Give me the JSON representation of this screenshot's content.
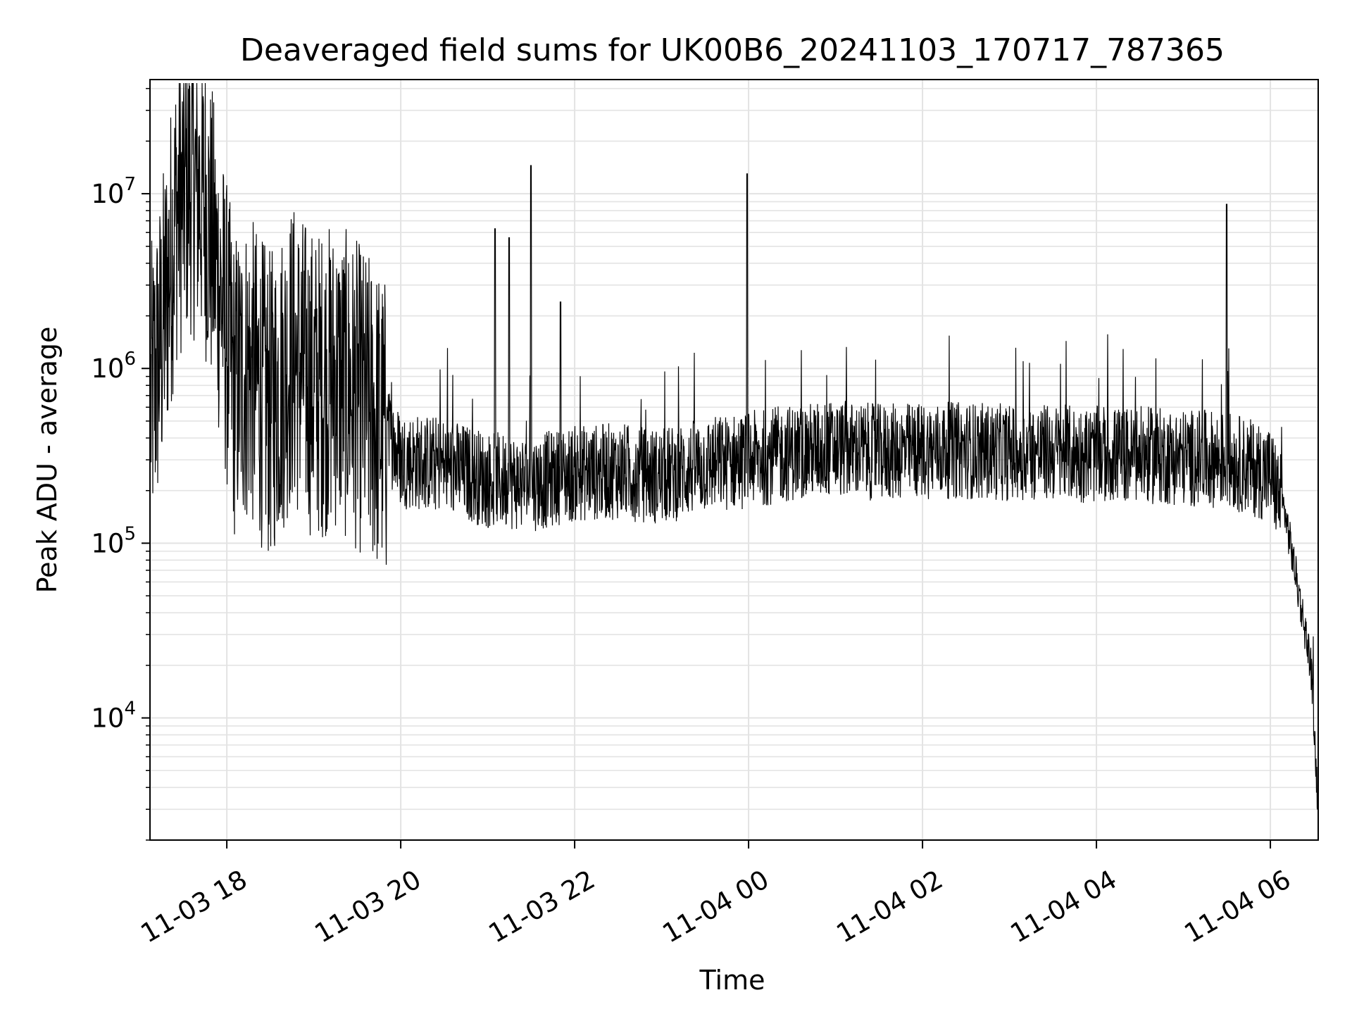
{
  "chart_data": {
    "type": "line",
    "title": "Deaveraged field sums for UK00B6_20241103_170717_787365",
    "xlabel": "Time",
    "ylabel": "Peak ADU - average",
    "y_scale": "log",
    "ylim": [
      2000,
      45000000
    ],
    "xlim": [
      "2024-11-03 17:07",
      "2024-11-04 06:33"
    ],
    "x_ticks": [
      "11-03 18",
      "11-03 20",
      "11-03 22",
      "11-04 00",
      "11-04 02",
      "11-04 04",
      "11-04 06"
    ],
    "x_tick_times": [
      "2024-11-03 18:00",
      "2024-11-03 20:00",
      "2024-11-03 22:00",
      "2024-11-04 00:00",
      "2024-11-04 02:00",
      "2024-11-04 04:00",
      "2024-11-04 06:00"
    ],
    "y_ticks": [
      {
        "base": "10",
        "exp": "4",
        "value": 10000
      },
      {
        "base": "10",
        "exp": "5",
        "value": 100000
      },
      {
        "base": "10",
        "exp": "6",
        "value": 1000000
      },
      {
        "base": "10",
        "exp": "7",
        "value": 10000000
      }
    ],
    "grid": true,
    "line_color": "#000000",
    "series": [
      {
        "x": [
          "2024-11-03 17:07",
          "2024-11-03 17:15",
          "2024-11-03 17:25",
          "2024-11-03 17:35",
          "2024-11-03 17:45",
          "2024-11-03 17:55",
          "2024-11-03 18:05",
          "2024-11-03 18:15",
          "2024-11-03 18:30",
          "2024-11-03 18:45",
          "2024-11-03 19:00",
          "2024-11-03 19:15",
          "2024-11-03 19:30",
          "2024-11-03 19:45",
          "2024-11-03 20:00",
          "2024-11-03 20:30",
          "2024-11-03 21:00",
          "2024-11-03 21:30",
          "2024-11-03 22:00",
          "2024-11-03 22:30",
          "2024-11-03 23:00",
          "2024-11-03 23:30",
          "2024-11-04 00:00",
          "2024-11-04 00:30",
          "2024-11-04 01:00",
          "2024-11-04 01:30",
          "2024-11-04 02:00",
          "2024-11-04 02:30",
          "2024-11-04 03:00",
          "2024-11-04 03:30",
          "2024-11-04 04:00",
          "2024-11-04 04:30",
          "2024-11-04 05:00",
          "2024-11-04 05:30",
          "2024-11-04 06:00",
          "2024-11-04 06:10",
          "2024-11-04 06:20",
          "2024-11-04 06:28",
          "2024-11-04 06:33"
        ],
        "y": [
          600000,
          1500000,
          8000000,
          12000000,
          9000000,
          3000000,
          800000,
          1000000,
          600000,
          1200000,
          800000,
          900000,
          700000,
          500000,
          300000,
          280000,
          230000,
          220000,
          250000,
          260000,
          240000,
          280000,
          300000,
          330000,
          350000,
          330000,
          340000,
          340000,
          330000,
          330000,
          320000,
          320000,
          310000,
          300000,
          250000,
          150000,
          50000,
          20000,
          3000
        ]
      }
    ],
    "spikes": [
      {
        "x": "2024-11-03 21:05",
        "y": 6300000
      },
      {
        "x": "2024-11-03 21:15",
        "y": 5600000
      },
      {
        "x": "2024-11-03 21:30",
        "y": 14500000
      },
      {
        "x": "2024-11-03 21:50",
        "y": 2400000
      },
      {
        "x": "2024-11-03 23:59",
        "y": 13000000
      },
      {
        "x": "2024-11-04 05:30",
        "y": 8700000
      }
    ]
  }
}
